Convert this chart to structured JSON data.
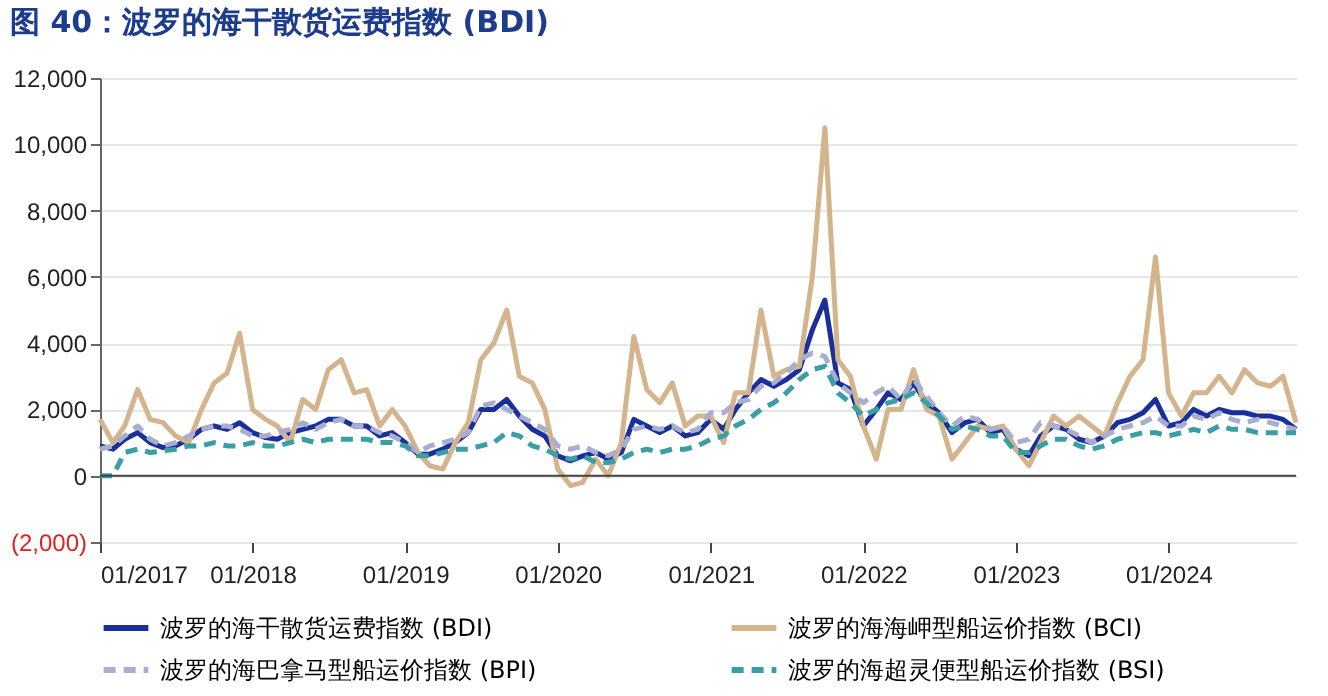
{
  "chart_data": {
    "type": "line",
    "title": "图 40：波罗的海干散货运费指数 (BDI)",
    "x": [
      "2017-01",
      "2017-02",
      "2017-03",
      "2017-04",
      "2017-05",
      "2017-06",
      "2017-07",
      "2017-08",
      "2017-09",
      "2017-10",
      "2017-11",
      "2017-12",
      "2018-01",
      "2018-02",
      "2018-03",
      "2018-04",
      "2018-05",
      "2018-06",
      "2018-07",
      "2018-08",
      "2018-09",
      "2018-10",
      "2018-11",
      "2018-12",
      "2019-01",
      "2019-02",
      "2019-03",
      "2019-04",
      "2019-05",
      "2019-06",
      "2019-07",
      "2019-08",
      "2019-09",
      "2019-10",
      "2019-11",
      "2019-12",
      "2020-01",
      "2020-02",
      "2020-03",
      "2020-04",
      "2020-05",
      "2020-06",
      "2020-07",
      "2020-08",
      "2020-09",
      "2020-10",
      "2020-11",
      "2020-12",
      "2021-01",
      "2021-02",
      "2021-03",
      "2021-04",
      "2021-05",
      "2021-06",
      "2021-07",
      "2021-08",
      "2021-09",
      "2021-10",
      "2021-11",
      "2021-12",
      "2022-01",
      "2022-02",
      "2022-03",
      "2022-04",
      "2022-05",
      "2022-06",
      "2022-07",
      "2022-08",
      "2022-09",
      "2022-10",
      "2022-11",
      "2022-12",
      "2023-01",
      "2023-02",
      "2023-03",
      "2023-04",
      "2023-05",
      "2023-06",
      "2023-07",
      "2023-08",
      "2023-09",
      "2023-10",
      "2023-11",
      "2023-12",
      "2024-01",
      "2024-02",
      "2024-03",
      "2024-04",
      "2024-05",
      "2024-06",
      "2024-07",
      "2024-08",
      "2024-09",
      "2024-10",
      "2024-11"
    ],
    "series": [
      {
        "name": "波罗的海干散货运费指数 (BDI)",
        "color": "#1a2f9a",
        "line_style": "solid",
        "values": [
          900,
          800,
          1100,
          1300,
          1000,
          850,
          900,
          1100,
          1400,
          1500,
          1400,
          1600,
          1300,
          1150,
          1100,
          1300,
          1400,
          1500,
          1700,
          1700,
          1500,
          1500,
          1200,
          1300,
          1000,
          650,
          650,
          800,
          1000,
          1300,
          2000,
          2000,
          2300,
          1800,
          1400,
          1200,
          600,
          450,
          600,
          700,
          500,
          700,
          1700,
          1500,
          1300,
          1500,
          1200,
          1300,
          1700,
          1400,
          2000,
          2500,
          2900,
          2700,
          2900,
          3200,
          4400,
          5300,
          2800,
          2600,
          1500,
          2000,
          2500,
          2300,
          2800,
          2200,
          1900,
          1300,
          1600,
          1700,
          1300,
          1400,
          800,
          600,
          1200,
          1500,
          1400,
          1100,
          1000,
          1200,
          1600,
          1700,
          1900,
          2300,
          1500,
          1600,
          2000,
          1800,
          2000,
          1900,
          1900,
          1800,
          1800,
          1700,
          1400
        ]
      },
      {
        "name": "波罗的海海岬型船运价指数 (BCI)",
        "color": "#d4b48c",
        "line_style": "solid",
        "values": [
          1700,
          1000,
          1500,
          2600,
          1700,
          1600,
          1200,
          1000,
          2000,
          2800,
          3100,
          4300,
          2000,
          1700,
          1500,
          1000,
          2300,
          2000,
          3200,
          3500,
          2500,
          2600,
          1500,
          2000,
          1500,
          700,
          300,
          200,
          1000,
          1600,
          3500,
          4000,
          5000,
          3000,
          2800,
          2000,
          200,
          -300,
          -200,
          500,
          0,
          1000,
          4200,
          2600,
          2200,
          2800,
          1500,
          1800,
          1800,
          1000,
          2500,
          2500,
          5000,
          3000,
          3200,
          3300,
          6000,
          10500,
          3500,
          3000,
          1500,
          500,
          2000,
          2000,
          3200,
          2000,
          1800,
          500,
          1000,
          1500,
          1400,
          1500,
          800,
          300,
          1000,
          1800,
          1500,
          1800,
          1500,
          1200,
          2200,
          3000,
          3500,
          6600,
          2500,
          1800,
          2500,
          2500,
          3000,
          2500,
          3200,
          2800,
          2700,
          3000,
          1600
        ]
      },
      {
        "name": "波罗的海巴拿马型船运价指数 (BPI)",
        "color": "#a9aed0",
        "line_style": "dashed",
        "values": [
          800,
          900,
          1200,
          1500,
          1100,
          900,
          1000,
          1200,
          1400,
          1500,
          1500,
          1400,
          1200,
          1200,
          1300,
          1400,
          1600,
          1400,
          1600,
          1700,
          1500,
          1500,
          1300,
          1200,
          1000,
          700,
          900,
          1000,
          1100,
          1300,
          2100,
          2200,
          2000,
          1800,
          1600,
          1400,
          900,
          800,
          900,
          700,
          600,
          800,
          1400,
          1500,
          1400,
          1500,
          1300,
          1400,
          1900,
          1900,
          2200,
          2300,
          2700,
          2800,
          3100,
          3500,
          3700,
          3600,
          2800,
          2500,
          2200,
          2500,
          2700,
          2300,
          2900,
          2400,
          1900,
          1500,
          1800,
          1700,
          1400,
          1500,
          1000,
          1100,
          1600,
          1500,
          1400,
          1200,
          1000,
          1200,
          1400,
          1500,
          1600,
          1800,
          1500,
          1500,
          1800,
          1700,
          1900,
          1700,
          1600,
          1700,
          1600,
          1500,
          1400
        ]
      },
      {
        "name": "波罗的海超灵便型船运价指数 (BSI)",
        "color": "#3a9ea5",
        "line_style": "dashed",
        "values": [
          0,
          0,
          700,
          800,
          700,
          750,
          800,
          900,
          900,
          1000,
          900,
          900,
          1000,
          900,
          900,
          1000,
          1100,
          1000,
          1100,
          1100,
          1100,
          1100,
          1000,
          1000,
          900,
          600,
          600,
          700,
          800,
          800,
          900,
          1000,
          1300,
          1200,
          900,
          800,
          600,
          500,
          600,
          400,
          400,
          500,
          700,
          800,
          700,
          800,
          800,
          900,
          1100,
          1200,
          1500,
          1700,
          2000,
          2200,
          2500,
          2900,
          3200,
          3300,
          2500,
          2200,
          1800,
          2000,
          2200,
          2300,
          2500,
          2200,
          1800,
          1400,
          1500,
          1400,
          1200,
          1200,
          700,
          700,
          900,
          1100,
          1100,
          900,
          800,
          900,
          1100,
          1200,
          1300,
          1300,
          1200,
          1300,
          1400,
          1300,
          1500,
          1400,
          1400,
          1300,
          1300,
          1300,
          1300
        ]
      }
    ],
    "xlim": [
      "2017-01",
      "2024-11"
    ],
    "xticks": [
      {
        "value": "2017-01",
        "label": "01/2017"
      },
      {
        "value": "2018-01",
        "label": "01/2018"
      },
      {
        "value": "2019-01",
        "label": "01/2019"
      },
      {
        "value": "2020-01",
        "label": "01/2020"
      },
      {
        "value": "2021-01",
        "label": "01/2021"
      },
      {
        "value": "2022-01",
        "label": "01/2022"
      },
      {
        "value": "2023-01",
        "label": "01/2023"
      },
      {
        "value": "2024-01",
        "label": "01/2024"
      }
    ],
    "ylim": [
      -2000,
      12000
    ],
    "yticks": [
      {
        "value": -2000,
        "label": "(2,000)"
      },
      {
        "value": 0,
        "label": "0"
      },
      {
        "value": 2000,
        "label": "2,000"
      },
      {
        "value": 4000,
        "label": "4,000"
      },
      {
        "value": 6000,
        "label": "6,000"
      },
      {
        "value": 8000,
        "label": "8,000"
      },
      {
        "value": 10000,
        "label": "10,000"
      },
      {
        "value": 12000,
        "label": "12,000"
      }
    ],
    "grid": "y",
    "legend": "bottom",
    "marker": "none"
  }
}
